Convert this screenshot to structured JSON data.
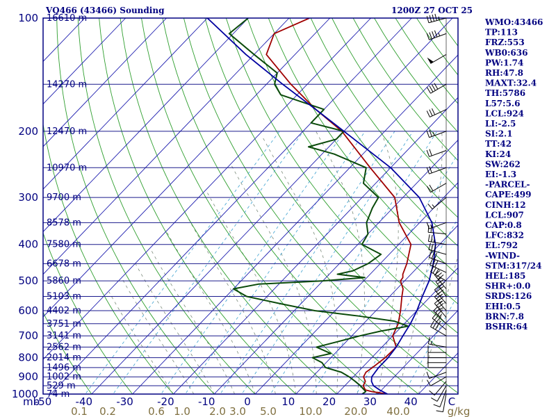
{
  "header": {
    "station": "VQ466 (43466) Sounding",
    "time": "1200Z 27 OCT 25"
  },
  "colors": {
    "frame": "#000080",
    "isobar": "#1a1a8c",
    "isotherm": "#2020b0",
    "dry_adiabat": "#2e9e2e",
    "moist_adiabat": "#7a8a7a",
    "mixing_ratio": "#a08040",
    "temperature": "#a00000",
    "dewpoint": "#0a4a0a",
    "parcel": "#0000a0",
    "wind_barb": "#000000"
  },
  "indices": [
    "WMO:43466",
    "TP:113",
    "FRZ:553",
    "WB0:636",
    "PW:1.74",
    "RH:47.8",
    "MAXT:32.4",
    "TH:5786",
    "L57:5.6",
    "LCL:924",
    "LI:-2.5",
    "SI:2.1",
    "TT:42",
    "KI:24",
    "SW:262",
    "EI:-1.3",
    "-PARCEL-",
    "CAPE:499",
    "CINH:12",
    "LCL:907",
    "CAP:0.8",
    "LFC:832",
    "EL:792",
    "-WIND-",
    "STM:317/24",
    "HEL:185",
    "SHR+:0.0",
    "SRDS:126",
    "EHI:0.5",
    "BRN:7.8",
    "BSHR:64"
  ],
  "chart_data": {
    "type": "line",
    "chart_kind": "skew-T log-P sounding",
    "x_axis": {
      "unit_label": "C",
      "range": [
        -50,
        50
      ],
      "ticks": [
        "-50",
        "-40",
        "-30",
        "-20",
        "-10",
        "0",
        "10",
        "20",
        "30",
        "40",
        "C"
      ]
    },
    "y_axis": {
      "unit_label": "mb",
      "scale": "log",
      "range": [
        1000,
        100
      ],
      "ticks": [
        "100",
        "200",
        "300",
        "400",
        "500",
        "600",
        "700",
        "800",
        "900",
        "1000"
      ]
    },
    "height_labels": [
      {
        "p": 100,
        "text": "16610 m"
      },
      {
        "p": 150,
        "text": "14270 m"
      },
      {
        "p": 200,
        "text": "12470 m"
      },
      {
        "p": 250,
        "text": "10970 m"
      },
      {
        "p": 300,
        "text": "9700 m"
      },
      {
        "p": 350,
        "text": "8578 m"
      },
      {
        "p": 400,
        "text": "7580 m"
      },
      {
        "p": 450,
        "text": "6678 m"
      },
      {
        "p": 500,
        "text": "5860 m"
      },
      {
        "p": 550,
        "text": "5103 m"
      },
      {
        "p": 600,
        "text": "4402 m"
      },
      {
        "p": 650,
        "text": "3751 m"
      },
      {
        "p": 700,
        "text": "3141 m"
      },
      {
        "p": 750,
        "text": "2562 m"
      },
      {
        "p": 800,
        "text": "2014 m"
      },
      {
        "p": 850,
        "text": "1496 m"
      },
      {
        "p": 900,
        "text": "1002 m"
      },
      {
        "p": 950,
        "text": "529 m"
      },
      {
        "p": 1000,
        "text": "74 m"
      }
    ],
    "mixing_ratio_labels": [
      "0.1",
      "0.2",
      "0.6",
      "1.0",
      "2.0",
      "3.0",
      "5.0",
      "10.0",
      "20.0",
      "40.0",
      "g/kg"
    ],
    "series": [
      {
        "key": "temperature",
        "points": [
          [
            1000,
            32.4
          ],
          [
            985,
            28.0
          ],
          [
            975,
            26.0
          ],
          [
            950,
            24.5
          ],
          [
            925,
            24.0
          ],
          [
            900,
            22.5
          ],
          [
            875,
            22.0
          ],
          [
            850,
            22.5
          ],
          [
            800,
            23.3
          ],
          [
            750,
            23.5
          ],
          [
            700,
            20.0
          ],
          [
            650,
            18.5
          ],
          [
            600,
            16.0
          ],
          [
            550,
            13.0
          ],
          [
            525,
            11.5
          ],
          [
            500,
            9.0
          ],
          [
            490,
            8.8
          ],
          [
            480,
            8.0
          ],
          [
            450,
            6.5
          ],
          [
            400,
            3.0
          ],
          [
            350,
            -5.0
          ],
          [
            300,
            -12.0
          ],
          [
            250,
            -25.0
          ],
          [
            200,
            -40.5
          ],
          [
            175,
            -52.0
          ],
          [
            150,
            -64.0
          ],
          [
            125,
            -77.0
          ],
          [
            110,
            -80.0
          ],
          [
            100,
            -75.0
          ]
        ]
      },
      {
        "key": "dewpoint",
        "points": [
          [
            1000,
            26.2
          ],
          [
            985,
            26.5
          ],
          [
            950,
            23.8
          ],
          [
            925,
            21.5
          ],
          [
            900,
            19.0
          ],
          [
            875,
            16.0
          ],
          [
            850,
            11.0
          ],
          [
            825,
            9.0
          ],
          [
            800,
            5.5
          ],
          [
            780,
            9.0
          ],
          [
            750,
            4.0
          ],
          [
            725,
            8.0
          ],
          [
            700,
            12.0
          ],
          [
            680,
            16.0
          ],
          [
            660,
            21.5
          ],
          [
            640,
            17.0
          ],
          [
            620,
            7.0
          ],
          [
            600,
            -5.0
          ],
          [
            575,
            -15.0
          ],
          [
            550,
            -25.0
          ],
          [
            525,
            -30.0
          ],
          [
            510,
            -25.0
          ],
          [
            500,
            -10.0
          ],
          [
            490,
            -0.5
          ],
          [
            480,
            -8.0
          ],
          [
            470,
            -5.0
          ],
          [
            450,
            -3.0
          ],
          [
            425,
            -2.0
          ],
          [
            400,
            -9.0
          ],
          [
            375,
            -10.0
          ],
          [
            350,
            -13.0
          ],
          [
            320,
            -15.0
          ],
          [
            300,
            -16.0
          ],
          [
            275,
            -23.0
          ],
          [
            250,
            -26.0
          ],
          [
            230,
            -37.0
          ],
          [
            220,
            -45.0
          ],
          [
            210,
            -40.0
          ],
          [
            200,
            -40.0
          ],
          [
            190,
            -50.0
          ],
          [
            175,
            -50.0
          ],
          [
            160,
            -64.0
          ],
          [
            150,
            -68.0
          ],
          [
            140,
            -70.0
          ],
          [
            125,
            -80.0
          ],
          [
            110,
            -91.0
          ],
          [
            100,
            -90.0
          ]
        ]
      },
      {
        "key": "parcel",
        "points": [
          [
            1000,
            32.4
          ],
          [
            975,
            29.5
          ],
          [
            950,
            27.0
          ],
          [
            925,
            25.5
          ],
          [
            900,
            24.5
          ],
          [
            850,
            24.0
          ],
          [
            800,
            24.0
          ],
          [
            750,
            23.5
          ],
          [
            700,
            22.5
          ],
          [
            650,
            21.5
          ],
          [
            600,
            20.0
          ],
          [
            550,
            18.0
          ],
          [
            500,
            16.0
          ],
          [
            450,
            13.0
          ],
          [
            400,
            9.0
          ],
          [
            350,
            3.0
          ],
          [
            300,
            -6.0
          ],
          [
            250,
            -20.0
          ],
          [
            200,
            -40.0
          ],
          [
            175,
            -52.0
          ],
          [
            150,
            -66.0
          ],
          [
            125,
            -82.0
          ],
          [
            100,
            -100.0
          ]
        ]
      }
    ],
    "wind_barbs": [
      {
        "p": 1000,
        "dir": 190,
        "spd": 10
      },
      {
        "p": 975,
        "dir": 200,
        "spd": 10
      },
      {
        "p": 950,
        "dir": 210,
        "spd": 10
      },
      {
        "p": 925,
        "dir": 220,
        "spd": 10
      },
      {
        "p": 900,
        "dir": 240,
        "spd": 10
      },
      {
        "p": 875,
        "dir": 250,
        "spd": 10
      },
      {
        "p": 850,
        "dir": 270,
        "spd": 10
      },
      {
        "p": 825,
        "dir": 270,
        "spd": 10
      },
      {
        "p": 800,
        "dir": 270,
        "spd": 10
      },
      {
        "p": 775,
        "dir": 270,
        "spd": 10
      },
      {
        "p": 750,
        "dir": 280,
        "spd": 15
      },
      {
        "p": 700,
        "dir": 300,
        "spd": 30
      },
      {
        "p": 675,
        "dir": 310,
        "spd": 35
      },
      {
        "p": 650,
        "dir": 315,
        "spd": 35
      },
      {
        "p": 625,
        "dir": 320,
        "spd": 35
      },
      {
        "p": 600,
        "dir": 320,
        "spd": 35
      },
      {
        "p": 575,
        "dir": 320,
        "spd": 35
      },
      {
        "p": 550,
        "dir": 325,
        "spd": 35
      },
      {
        "p": 525,
        "dir": 320,
        "spd": 30
      },
      {
        "p": 500,
        "dir": 300,
        "spd": 30
      },
      {
        "p": 475,
        "dir": 295,
        "spd": 30
      },
      {
        "p": 450,
        "dir": 290,
        "spd": 30
      },
      {
        "p": 425,
        "dir": 285,
        "spd": 30
      },
      {
        "p": 400,
        "dir": 280,
        "spd": 25
      },
      {
        "p": 375,
        "dir": 275,
        "spd": 20
      },
      {
        "p": 350,
        "dir": 250,
        "spd": 15
      },
      {
        "p": 300,
        "dir": 230,
        "spd": 15
      },
      {
        "p": 275,
        "dir": 240,
        "spd": 20
      },
      {
        "p": 250,
        "dir": 250,
        "spd": 20
      },
      {
        "p": 225,
        "dir": 250,
        "spd": 20
      },
      {
        "p": 200,
        "dir": 250,
        "spd": 25
      },
      {
        "p": 175,
        "dir": 245,
        "spd": 30
      },
      {
        "p": 150,
        "dir": 240,
        "spd": 40
      },
      {
        "p": 125,
        "dir": 240,
        "spd": 50
      },
      {
        "p": 110,
        "dir": 250,
        "spd": 45
      },
      {
        "p": 100,
        "dir": 255,
        "spd": 45
      }
    ]
  }
}
